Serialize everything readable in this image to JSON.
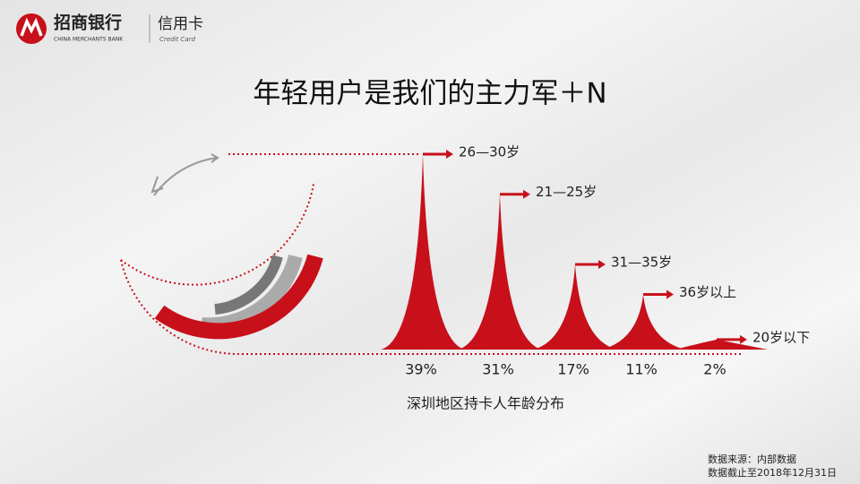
{
  "header": {
    "brand": "招商银行",
    "brand_en": "CHINA MERCHANTS BANK",
    "product": "信用卡",
    "product_en": "Credit Card"
  },
  "chart_data": {
    "type": "spike",
    "title": "年轻用户是我们的主力军＋N",
    "categories": [
      "26—30岁",
      "21—25岁",
      "31—35岁",
      "36岁以上",
      "20岁以下"
    ],
    "values": [
      39,
      31,
      17,
      11,
      2
    ],
    "value_labels": [
      "39%",
      "31%",
      "17%",
      "11%",
      "2%"
    ],
    "color": "#c8101a",
    "caption": "深圳地区持卡人年龄分布"
  },
  "footer": {
    "source": "数据来源：内部数据",
    "date": "数据截止至2018年12月31日"
  }
}
